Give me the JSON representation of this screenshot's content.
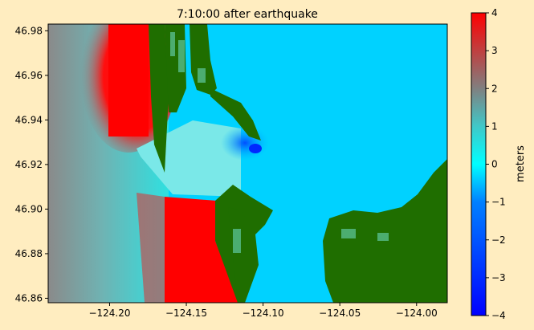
{
  "chart_data": {
    "type": "heatmap",
    "title": "7:10:00 after earthquake",
    "x_ticks": [
      -124.2,
      -124.15,
      -124.1,
      -124.05,
      -124.0
    ],
    "x_tick_labels": [
      "−124.20",
      "−124.15",
      "−124.10",
      "−124.05",
      "−124.00"
    ],
    "y_ticks": [
      46.86,
      46.88,
      46.9,
      46.92,
      46.94,
      46.96,
      46.98
    ],
    "y_tick_labels": [
      "46.86",
      "46.88",
      "46.90",
      "46.92",
      "46.94",
      "46.96",
      "46.98"
    ],
    "xlim": [
      -124.24,
      -123.98
    ],
    "ylim": [
      46.858,
      46.983
    ],
    "colorbar": {
      "label": "meters",
      "min": -4,
      "max": 4,
      "ticks": [
        -4,
        -3,
        -2,
        -1,
        0,
        1,
        2,
        3,
        4
      ],
      "tick_labels": [
        "−4",
        "−3",
        "−2",
        "−1",
        "0",
        "1",
        "2",
        "3",
        "4"
      ],
      "colors": [
        "#0000ff",
        "#00ffff",
        "#808080",
        "#ff0000"
      ]
    },
    "land_color": "#1f6e00",
    "dominant_surface_value": 0.3
  }
}
